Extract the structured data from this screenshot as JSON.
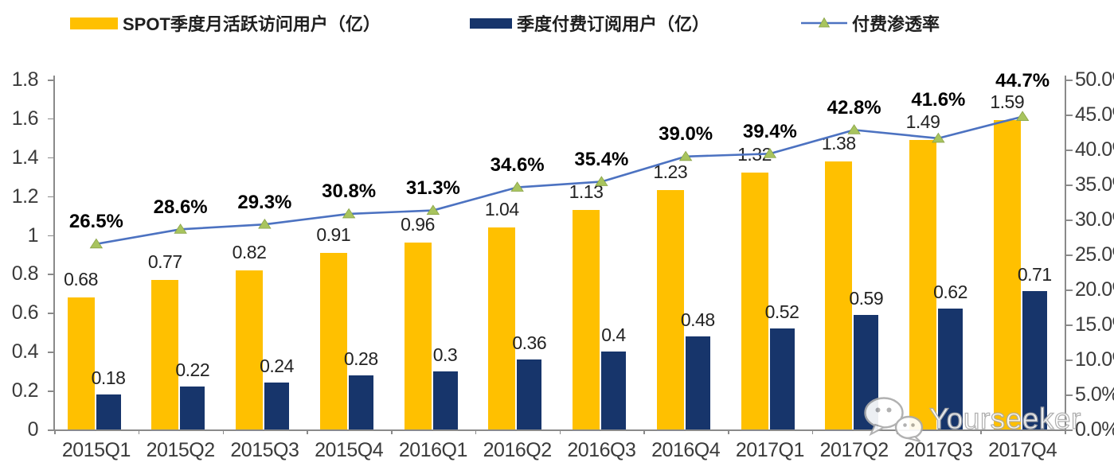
{
  "legend": {
    "items": [
      {
        "label": "SPOT季度月活跃访问用户（亿）",
        "swatch": "bar",
        "color": "#FFC000"
      },
      {
        "label": "季度付费订阅用户（亿）",
        "swatch": "bar",
        "color": "#17356B"
      },
      {
        "label": "付费渗透率",
        "swatch": "line",
        "color": "#4C72C1",
        "marker_color": "#A8C45E"
      }
    ]
  },
  "watermark": {
    "text": "Yourseeker",
    "icon": "wechat-icon"
  },
  "chart_data": {
    "type": "bar",
    "subtype": "grouped-bars-with-line",
    "categories": [
      "2015Q1",
      "2015Q2",
      "2015Q3",
      "2015Q4",
      "2016Q1",
      "2016Q2",
      "2016Q3",
      "2016Q4",
      "2017Q1",
      "2017Q2",
      "2017Q3",
      "2017Q4"
    ],
    "series": [
      {
        "name": "SPOT季度月活跃访问用户（亿）",
        "type": "bar",
        "axis": "left",
        "color": "#FFC000",
        "values": [
          0.68,
          0.77,
          0.82,
          0.91,
          0.96,
          1.04,
          1.13,
          1.23,
          1.32,
          1.38,
          1.49,
          1.59
        ],
        "labels": [
          "0.68",
          "0.77",
          "0.82",
          "0.91",
          "0.96",
          "1.04",
          "1.13",
          "1.23",
          "1.32",
          "1.38",
          "1.49",
          "1.59"
        ]
      },
      {
        "name": "季度付费订阅用户（亿）",
        "type": "bar",
        "axis": "left",
        "color": "#17356B",
        "values": [
          0.18,
          0.22,
          0.24,
          0.28,
          0.3,
          0.36,
          0.4,
          0.48,
          0.52,
          0.59,
          0.62,
          0.71
        ],
        "labels": [
          "0.18",
          "0.22",
          "0.24",
          "0.28",
          "0.3",
          "0.36",
          "0.4",
          "0.48",
          "0.52",
          "0.59",
          "0.62",
          "0.71"
        ]
      },
      {
        "name": "付费渗透率",
        "type": "line",
        "axis": "right",
        "color": "#4C72C1",
        "marker": "triangle",
        "marker_color": "#A8C45E",
        "values": [
          26.5,
          28.6,
          29.3,
          30.8,
          31.3,
          34.6,
          35.4,
          39.0,
          39.4,
          42.8,
          41.6,
          44.7
        ],
        "labels": [
          "26.5%",
          "28.6%",
          "29.3%",
          "30.8%",
          "31.3%",
          "34.6%",
          "35.4%",
          "39.0%",
          "39.4%",
          "42.8%",
          "41.6%",
          "44.7%"
        ]
      }
    ],
    "left_axis": {
      "min": 0,
      "max": 1.8,
      "ticks": [
        "0",
        "0.2",
        "0.4",
        "0.6",
        "0.8",
        "1",
        "1.2",
        "1.4",
        "1.6",
        "1.8"
      ]
    },
    "right_axis": {
      "min": 0,
      "max": 50,
      "ticks": [
        "0.0%",
        "5.0%",
        "10.0%",
        "15.0%",
        "20.0%",
        "25.0%",
        "30.0%",
        "35.0%",
        "40.0%",
        "45.0%",
        "50.0%"
      ]
    },
    "grid": false,
    "legend_position": "top"
  }
}
